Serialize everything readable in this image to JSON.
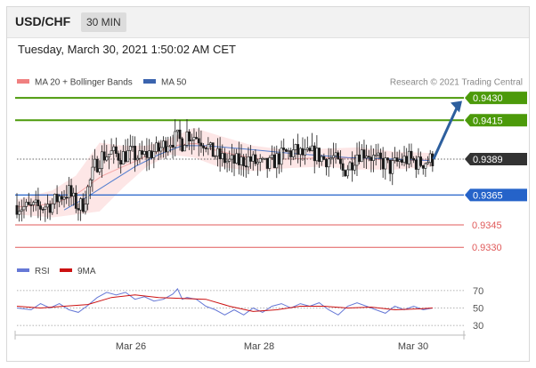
{
  "header": {
    "symbol": "USD/CHF",
    "timeframe": "30 MIN",
    "timestamp": "Tuesday, March 30, 2021 1:50:02 AM CET"
  },
  "legend": {
    "ma20": {
      "label": "MA 20 + Bollinger Bands",
      "color": "#f08080"
    },
    "ma50": {
      "label": "MA 50",
      "color": "#3b64ae"
    },
    "credit": "Research © 2021 Trading Central"
  },
  "colors": {
    "resistance": "#4c9a0a",
    "pivot": "#2563c9",
    "support": "#e05a5a",
    "last_price": "#333333",
    "arrow": "#2d5f9e",
    "candle": "#1a1a1a"
  },
  "chart_data": [
    {
      "type": "candlestick",
      "title": "USD/CHF 30 MIN",
      "x_ticks": [
        "Mar 26",
        "Mar 28",
        "Mar 30"
      ],
      "price_range": [
        0.9323,
        0.9436
      ],
      "levels": [
        {
          "value": 0.943,
          "label": "0.9430",
          "kind": "resistance"
        },
        {
          "value": 0.9415,
          "label": "0.9415",
          "kind": "resistance"
        },
        {
          "value": 0.9389,
          "label": "0.9389",
          "kind": "last"
        },
        {
          "value": 0.9365,
          "label": "0.9365",
          "kind": "pivot"
        },
        {
          "value": 0.9345,
          "label": "0.9345",
          "kind": "support"
        },
        {
          "value": 0.933,
          "label": "0.9330",
          "kind": "support"
        }
      ],
      "close_path": [
        [
          0,
          0.9358
        ],
        [
          5,
          0.9356
        ],
        [
          10,
          0.9357
        ],
        [
          15,
          0.9359
        ],
        [
          18,
          0.9364
        ],
        [
          22,
          0.9367
        ],
        [
          24,
          0.9361
        ],
        [
          26,
          0.9357
        ],
        [
          28,
          0.9359
        ],
        [
          30,
          0.9369
        ],
        [
          33,
          0.9384
        ],
        [
          36,
          0.9391
        ],
        [
          40,
          0.9393
        ],
        [
          44,
          0.9391
        ],
        [
          48,
          0.9393
        ],
        [
          52,
          0.939
        ],
        [
          56,
          0.9393
        ],
        [
          60,
          0.9395
        ],
        [
          64,
          0.9401
        ],
        [
          68,
          0.9403
        ],
        [
          70,
          0.94
        ],
        [
          72,
          0.9406
        ],
        [
          76,
          0.9404
        ],
        [
          80,
          0.94
        ],
        [
          82,
          0.9394
        ],
        [
          86,
          0.939
        ],
        [
          90,
          0.9387
        ],
        [
          94,
          0.9387
        ],
        [
          98,
          0.9389
        ],
        [
          102,
          0.9386
        ],
        [
          106,
          0.9384
        ],
        [
          110,
          0.9389
        ],
        [
          114,
          0.9393
        ],
        [
          118,
          0.9394
        ],
        [
          122,
          0.9391
        ],
        [
          126,
          0.9393
        ],
        [
          130,
          0.9389
        ],
        [
          134,
          0.939
        ],
        [
          138,
          0.9381
        ],
        [
          141,
          0.9385
        ],
        [
          144,
          0.9393
        ],
        [
          148,
          0.9394
        ],
        [
          152,
          0.9388
        ],
        [
          156,
          0.9386
        ],
        [
          158,
          0.9383
        ],
        [
          162,
          0.9388
        ],
        [
          166,
          0.9389
        ],
        [
          170,
          0.9386
        ],
        [
          174,
          0.9388
        ],
        [
          176,
          0.9389
        ]
      ],
      "ma50": [
        [
          20,
          0.9355
        ],
        [
          30,
          0.9364
        ],
        [
          40,
          0.9374
        ],
        [
          50,
          0.9384
        ],
        [
          60,
          0.9392
        ],
        [
          70,
          0.9398
        ],
        [
          80,
          0.9398
        ],
        [
          95,
          0.9396
        ],
        [
          115,
          0.9393
        ],
        [
          140,
          0.939
        ],
        [
          160,
          0.9389
        ],
        [
          176,
          0.9388
        ]
      ],
      "bollinger": {
        "upper": [
          [
            0,
            0.9362
          ],
          [
            15,
            0.9368
          ],
          [
            25,
            0.9378
          ],
          [
            35,
            0.94
          ],
          [
            45,
            0.9398
          ],
          [
            55,
            0.9398
          ],
          [
            65,
            0.9403
          ],
          [
            75,
            0.941
          ],
          [
            85,
            0.9405
          ],
          [
            100,
            0.9398
          ],
          [
            115,
            0.9395
          ],
          [
            130,
            0.9396
          ],
          [
            145,
            0.9397
          ],
          [
            160,
            0.9394
          ],
          [
            176,
            0.9393
          ]
        ],
        "lower": [
          [
            0,
            0.9352
          ],
          [
            15,
            0.935
          ],
          [
            25,
            0.9352
          ],
          [
            35,
            0.9354
          ],
          [
            45,
            0.937
          ],
          [
            55,
            0.9384
          ],
          [
            65,
            0.9392
          ],
          [
            75,
            0.939
          ],
          [
            85,
            0.9384
          ],
          [
            100,
            0.9381
          ],
          [
            115,
            0.9383
          ],
          [
            130,
            0.9384
          ],
          [
            145,
            0.9382
          ],
          [
            160,
            0.9382
          ],
          [
            176,
            0.9384
          ]
        ]
      },
      "projection": {
        "from": 0.9389,
        "to": 0.9428
      }
    },
    {
      "type": "line",
      "title": "",
      "legend": [
        "RSI",
        "9MA"
      ],
      "y_ticks": [
        70,
        50,
        30
      ],
      "ylim": [
        25,
        75
      ],
      "series": [
        {
          "name": "RSI",
          "color": "#6678d6",
          "points": [
            [
              0,
              50
            ],
            [
              6,
              48
            ],
            [
              10,
              55
            ],
            [
              14,
              50
            ],
            [
              18,
              55
            ],
            [
              22,
              48
            ],
            [
              26,
              45
            ],
            [
              30,
              53
            ],
            [
              34,
              62
            ],
            [
              38,
              68
            ],
            [
              42,
              65
            ],
            [
              46,
              68
            ],
            [
              50,
              60
            ],
            [
              54,
              63
            ],
            [
              58,
              58
            ],
            [
              62,
              60
            ],
            [
              66,
              66
            ],
            [
              68,
              72
            ],
            [
              70,
              60
            ],
            [
              72,
              62
            ],
            [
              76,
              60
            ],
            [
              80,
              52
            ],
            [
              84,
              48
            ],
            [
              88,
              42
            ],
            [
              92,
              48
            ],
            [
              96,
              42
            ],
            [
              100,
              50
            ],
            [
              104,
              45
            ],
            [
              108,
              52
            ],
            [
              112,
              55
            ],
            [
              116,
              50
            ],
            [
              120,
              55
            ],
            [
              124,
              52
            ],
            [
              128,
              56
            ],
            [
              132,
              48
            ],
            [
              136,
              42
            ],
            [
              140,
              52
            ],
            [
              144,
              56
            ],
            [
              148,
              52
            ],
            [
              152,
              48
            ],
            [
              156,
              44
            ],
            [
              160,
              52
            ],
            [
              164,
              48
            ],
            [
              168,
              52
            ],
            [
              172,
              48
            ],
            [
              176,
              50
            ]
          ]
        },
        {
          "name": "9MA",
          "color": "#cc1111",
          "points": [
            [
              0,
              52
            ],
            [
              10,
              50
            ],
            [
              20,
              52
            ],
            [
              30,
              54
            ],
            [
              40,
              62
            ],
            [
              50,
              65
            ],
            [
              60,
              62
            ],
            [
              70,
              61
            ],
            [
              80,
              60
            ],
            [
              90,
              52
            ],
            [
              100,
              46
            ],
            [
              110,
              48
            ],
            [
              120,
              52
            ],
            [
              130,
              52
            ],
            [
              140,
              50
            ],
            [
              150,
              51
            ],
            [
              160,
              48
            ],
            [
              170,
              49
            ],
            [
              176,
              50
            ]
          ]
        }
      ]
    }
  ]
}
